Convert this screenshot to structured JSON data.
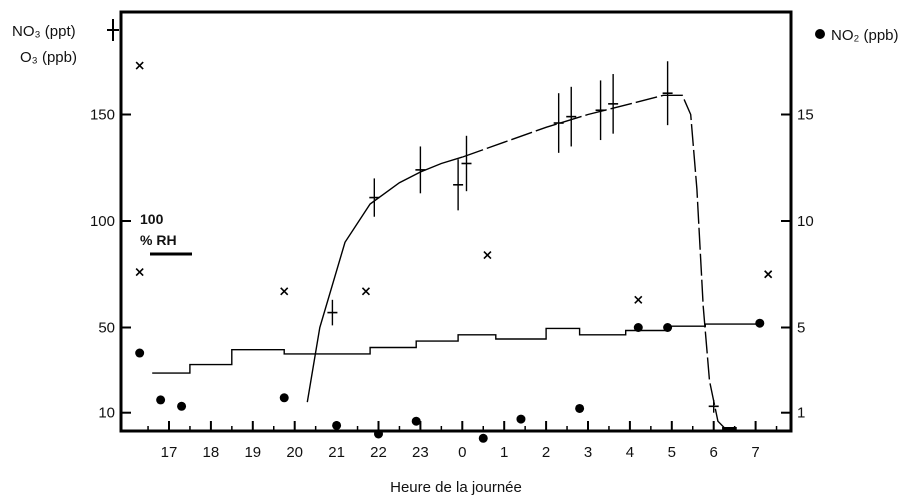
{
  "chart_data": {
    "type": "scatter",
    "title": "",
    "xlabel": "Heure de la journée",
    "x_ticks": [
      "17",
      "18",
      "19",
      "20",
      "21",
      "22",
      "23",
      "0",
      "1",
      "2",
      "3",
      "4",
      "5",
      "6",
      "7"
    ],
    "left_axis": {
      "label_line1": "NO₃ (ppt)",
      "label_line2": "O₃ (ppb)",
      "ticks": [
        10,
        50,
        100,
        150
      ],
      "range": [
        0,
        190
      ]
    },
    "right_axis": {
      "label": "NO₂ (ppb)",
      "ticks": [
        1,
        5,
        10,
        15
      ],
      "range": [
        0,
        19
      ]
    },
    "rh_scale": {
      "value_label": "100",
      "unit_label": "% RH"
    },
    "series": [
      {
        "name": "NO₃ (ppt)",
        "marker": "+",
        "axis": "left",
        "points": [
          {
            "x": 20.9,
            "y": 57,
            "err": 6
          },
          {
            "x": 21.9,
            "y": 111,
            "err": 9
          },
          {
            "x": 23.0,
            "y": 124,
            "err": 11
          },
          {
            "x": 23.9,
            "y": 117,
            "err": 12
          },
          {
            "x": 24.1,
            "y": 127,
            "err": 13
          },
          {
            "x": 26.3,
            "y": 146,
            "err": 14
          },
          {
            "x": 26.6,
            "y": 149,
            "err": 14
          },
          {
            "x": 27.3,
            "y": 152,
            "err": 14
          },
          {
            "x": 27.6,
            "y": 155,
            "err": 14
          },
          {
            "x": 28.9,
            "y": 160,
            "err": 15
          },
          {
            "x": 30.0,
            "y": 13,
            "err": 3
          }
        ],
        "curve": [
          [
            20.3,
            15
          ],
          [
            20.6,
            50
          ],
          [
            21.2,
            90
          ],
          [
            21.8,
            108
          ],
          [
            22.5,
            118
          ],
          [
            23.0,
            123
          ],
          [
            23.5,
            127
          ],
          [
            24.0,
            130
          ],
          [
            25.0,
            137
          ],
          [
            26.0,
            144
          ],
          [
            27.0,
            150
          ],
          [
            28.0,
            155
          ],
          [
            28.8,
            159
          ],
          [
            29.25,
            159
          ],
          [
            29.45,
            150
          ],
          [
            29.6,
            115
          ],
          [
            29.75,
            60
          ],
          [
            29.9,
            25
          ],
          [
            30.1,
            6
          ],
          [
            30.3,
            2
          ]
        ],
        "curve_dashed_from_x": 24.0,
        "floor_x": [
          30.2,
          30.55
        ]
      },
      {
        "name": "O₃ (ppb)",
        "marker": "x",
        "axis": "left",
        "points": [
          {
            "x": 16.3,
            "y": 76
          },
          {
            "x": 19.75,
            "y": 67
          },
          {
            "x": 21.7,
            "y": 67
          },
          {
            "x": 24.6,
            "y": 84
          },
          {
            "x": 28.2,
            "y": 63
          },
          {
            "x": 31.3,
            "y": 75
          },
          {
            "x": 16.3,
            "y": 173
          }
        ]
      },
      {
        "name": "NO₂ (ppb)",
        "marker": "dot",
        "axis": "right",
        "points": [
          {
            "x": 16.3,
            "y": 3.8
          },
          {
            "x": 16.8,
            "y": 1.6
          },
          {
            "x": 17.3,
            "y": 1.3
          },
          {
            "x": 19.75,
            "y": 1.7
          },
          {
            "x": 21.0,
            "y": 0.4
          },
          {
            "x": 22.0,
            "y": 0.0
          },
          {
            "x": 22.9,
            "y": 0.6
          },
          {
            "x": 24.5,
            "y": -0.2
          },
          {
            "x": 25.4,
            "y": 0.7
          },
          {
            "x": 26.8,
            "y": 1.2
          },
          {
            "x": 28.2,
            "y": 5.0
          },
          {
            "x": 28.9,
            "y": 5.0
          },
          {
            "x": 31.1,
            "y": 5.2
          }
        ]
      },
      {
        "name": "RH",
        "type": "step",
        "note_unit": "% RH",
        "steps": [
          {
            "x0": 16.6,
            "x1": 17.5,
            "rh": 30
          },
          {
            "x0": 17.5,
            "x1": 18.5,
            "rh": 34
          },
          {
            "x0": 18.5,
            "x1": 19.75,
            "rh": 41
          },
          {
            "x0": 19.75,
            "x1": 21.8,
            "rh": 39
          },
          {
            "x0": 21.8,
            "x1": 22.9,
            "rh": 42
          },
          {
            "x0": 22.9,
            "x1": 23.9,
            "rh": 45
          },
          {
            "x0": 23.9,
            "x1": 24.8,
            "rh": 48
          },
          {
            "x0": 24.8,
            "x1": 26.0,
            "rh": 46
          },
          {
            "x0": 26.0,
            "x1": 26.8,
            "rh": 51
          },
          {
            "x0": 26.8,
            "x1": 27.9,
            "rh": 48
          },
          {
            "x0": 27.9,
            "x1": 28.9,
            "rh": 50
          },
          {
            "x0": 28.9,
            "x1": 29.8,
            "rh": 52
          },
          {
            "x0": 29.8,
            "x1": 31.2,
            "rh": 53
          }
        ]
      }
    ],
    "grid": false
  }
}
